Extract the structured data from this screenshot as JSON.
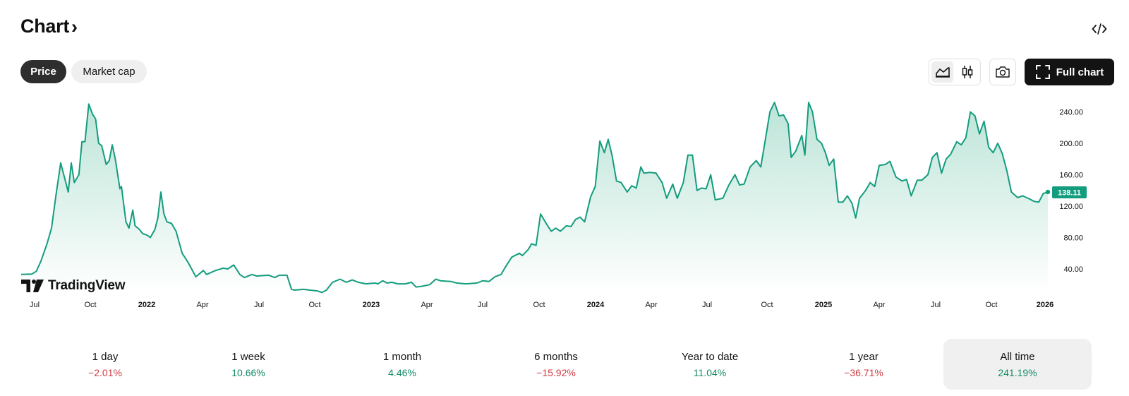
{
  "header": {
    "title": "Chart",
    "chevron": "›",
    "embed_icon": "code-icon"
  },
  "tabs": [
    {
      "label": "Price",
      "active": true
    },
    {
      "label": "Market cap",
      "active": false
    }
  ],
  "toolbar": {
    "area_icon": "area-chart-icon",
    "candle_icon": "candlestick-icon",
    "snapshot_icon": "camera-icon",
    "full_chart_label": "Full chart",
    "full_chart_icon": "fullscreen-icon"
  },
  "watermark": "TradingView",
  "chart_data": {
    "type": "area",
    "line_color": "#149c7e",
    "fill_color": "#d4efe7",
    "x_tick_labels": [
      "Jul",
      "Oct",
      "2022",
      "Apr",
      "Jul",
      "Oct",
      "2023",
      "Apr",
      "Jul",
      "Oct",
      "2024",
      "Apr",
      "Jul",
      "Oct",
      "2025",
      "Apr",
      "Jul",
      "Oct",
      "2026"
    ],
    "x_tick_bold": [
      false,
      false,
      true,
      false,
      false,
      false,
      true,
      false,
      false,
      false,
      true,
      false,
      false,
      false,
      true,
      false,
      false,
      false,
      true
    ],
    "y_tick_labels": [
      "240.00",
      "200.00",
      "160.00",
      "120.00",
      "80.00",
      "40.00"
    ],
    "y_ticks": [
      240,
      200,
      160,
      120,
      80,
      40
    ],
    "ylim": [
      10,
      270
    ],
    "xlim": [
      0,
      54
    ],
    "last_value_label": "138.11",
    "points": [
      [
        0,
        33
      ],
      [
        0.7,
        33.5
      ],
      [
        1,
        37
      ],
      [
        1.3,
        50
      ],
      [
        1.7,
        72
      ],
      [
        2,
        92
      ],
      [
        2.3,
        135
      ],
      [
        2.6,
        175
      ],
      [
        2.9,
        153
      ],
      [
        3.1,
        138
      ],
      [
        3.3,
        175
      ],
      [
        3.5,
        150
      ],
      [
        3.8,
        160
      ],
      [
        4,
        202
      ],
      [
        4.2,
        202
      ],
      [
        4.45,
        250
      ],
      [
        4.7,
        237
      ],
      [
        4.9,
        231
      ],
      [
        5.1,
        200
      ],
      [
        5.3,
        197
      ],
      [
        5.6,
        173
      ],
      [
        5.8,
        178
      ],
      [
        6,
        198
      ],
      [
        6.2,
        180
      ],
      [
        6.5,
        142
      ],
      [
        6.6,
        145
      ],
      [
        6.9,
        100
      ],
      [
        7.1,
        92
      ],
      [
        7.35,
        115
      ],
      [
        7.5,
        95
      ],
      [
        7.8,
        90
      ],
      [
        8,
        85
      ],
      [
        8.3,
        83
      ],
      [
        8.5,
        80
      ],
      [
        8.8,
        90
      ],
      [
        9,
        105
      ],
      [
        9.2,
        138
      ],
      [
        9.4,
        110
      ],
      [
        9.6,
        100
      ],
      [
        9.9,
        98
      ],
      [
        10.2,
        88
      ],
      [
        10.6,
        60
      ],
      [
        11,
        48
      ],
      [
        11.5,
        30
      ],
      [
        12,
        38
      ],
      [
        12.2,
        33
      ],
      [
        12.8,
        38
      ],
      [
        13.3,
        41
      ],
      [
        13.6,
        40
      ],
      [
        14,
        45
      ],
      [
        14.4,
        33
      ],
      [
        14.7,
        29
      ],
      [
        15.2,
        33
      ],
      [
        15.5,
        31
      ],
      [
        16.3,
        32
      ],
      [
        16.7,
        29
      ],
      [
        17,
        32
      ],
      [
        17.5,
        32
      ],
      [
        17.8,
        14
      ],
      [
        18,
        13
      ],
      [
        18.6,
        14
      ],
      [
        19,
        13
      ],
      [
        19.5,
        12
      ],
      [
        19.8,
        10
      ],
      [
        20.1,
        13
      ],
      [
        20.5,
        23
      ],
      [
        21,
        27
      ],
      [
        21.4,
        23
      ],
      [
        21.8,
        26
      ],
      [
        22.2,
        23
      ],
      [
        22.7,
        21
      ],
      [
        23.3,
        22
      ],
      [
        23.5,
        21
      ],
      [
        23.8,
        25
      ],
      [
        24.1,
        22
      ],
      [
        24.4,
        23
      ],
      [
        24.8,
        21
      ],
      [
        25.3,
        21
      ],
      [
        25.7,
        23
      ],
      [
        26,
        17
      ],
      [
        26.4,
        18
      ],
      [
        26.9,
        20
      ],
      [
        27.3,
        27
      ],
      [
        27.6,
        25
      ],
      [
        28.3,
        24
      ],
      [
        28.7,
        22
      ],
      [
        29.3,
        21
      ],
      [
        30,
        22
      ],
      [
        30.4,
        25
      ],
      [
        30.8,
        24
      ],
      [
        31.2,
        30
      ],
      [
        31.6,
        33
      ],
      [
        31.9,
        43
      ],
      [
        32.3,
        55
      ],
      [
        32.8,
        60
      ],
      [
        33,
        57
      ],
      [
        33.4,
        65
      ],
      [
        33.6,
        72
      ],
      [
        33.9,
        70
      ],
      [
        34.2,
        110
      ],
      [
        34.6,
        97
      ],
      [
        34.9,
        88
      ],
      [
        35.2,
        92
      ],
      [
        35.5,
        88
      ],
      [
        35.9,
        95
      ],
      [
        36.2,
        94
      ],
      [
        36.5,
        103
      ],
      [
        36.8,
        106
      ],
      [
        37.1,
        100
      ],
      [
        37.5,
        132
      ],
      [
        37.8,
        145
      ],
      [
        38.1,
        203
      ],
      [
        38.4,
        188
      ],
      [
        38.65,
        205
      ],
      [
        38.9,
        185
      ],
      [
        39.2,
        152
      ],
      [
        39.5,
        150
      ],
      [
        39.9,
        138
      ],
      [
        40.2,
        146
      ],
      [
        40.5,
        143
      ],
      [
        40.8,
        170
      ],
      [
        41,
        162
      ],
      [
        41.4,
        163
      ],
      [
        41.8,
        162
      ],
      [
        42.2,
        150
      ],
      [
        42.5,
        130
      ],
      [
        42.9,
        148
      ],
      [
        43.2,
        130
      ],
      [
        43.6,
        150
      ],
      [
        43.9,
        185
      ],
      [
        44.2,
        185
      ],
      [
        44.5,
        140
      ],
      [
        44.8,
        143
      ],
      [
        45.1,
        142
      ],
      [
        45.4,
        160
      ],
      [
        45.7,
        128
      ],
      [
        46.2,
        130
      ],
      [
        46.6,
        147
      ],
      [
        47,
        160
      ],
      [
        47.3,
        147
      ],
      [
        47.6,
        148
      ],
      [
        48,
        170
      ],
      [
        48.4,
        178
      ],
      [
        48.7,
        170
      ],
      [
        49,
        205
      ],
      [
        49.3,
        240
      ],
      [
        49.6,
        252
      ],
      [
        49.9,
        235
      ],
      [
        50.2,
        236
      ],
      [
        50.5,
        225
      ],
      [
        50.7,
        182
      ],
      [
        51,
        190
      ],
      [
        51.2,
        200
      ],
      [
        51.4,
        210
      ],
      [
        51.6,
        185
      ],
      [
        51.85,
        252
      ],
      [
        52.1,
        240
      ],
      [
        52.4,
        205
      ],
      [
        52.7,
        200
      ],
      [
        52.95,
        188
      ],
      [
        53.2,
        172
      ],
      [
        53.5,
        180
      ],
      [
        53.8,
        125
      ]
    ],
    "points_cont": [
      [
        54.1,
        125
      ],
      [
        54.4,
        133
      ],
      [
        54.7,
        124
      ],
      [
        54.95,
        105
      ],
      [
        55.2,
        130
      ],
      [
        55.6,
        140
      ],
      [
        55.9,
        150
      ],
      [
        56.2,
        145
      ],
      [
        56.5,
        172
      ],
      [
        56.9,
        173
      ],
      [
        57.2,
        177
      ],
      [
        57.6,
        157
      ],
      [
        58,
        152
      ],
      [
        58.3,
        154
      ],
      [
        58.6,
        133
      ],
      [
        59,
        153
      ],
      [
        59.3,
        153
      ],
      [
        59.7,
        160
      ],
      [
        60,
        182
      ],
      [
        60.3,
        188
      ],
      [
        60.6,
        162
      ],
      [
        60.9,
        180
      ],
      [
        61.2,
        186
      ],
      [
        61.6,
        202
      ],
      [
        61.9,
        198
      ],
      [
        62.2,
        207
      ],
      [
        62.5,
        240
      ],
      [
        62.8,
        235
      ],
      [
        63.1,
        212
      ],
      [
        63.4,
        228
      ],
      [
        63.7,
        195
      ],
      [
        64,
        188
      ],
      [
        64.3,
        200
      ],
      [
        64.6,
        187
      ],
      [
        64.9,
        165
      ],
      [
        65.2,
        138
      ],
      [
        65.6,
        131
      ],
      [
        65.95,
        133
      ],
      [
        66.3,
        130
      ],
      [
        66.7,
        126
      ],
      [
        67,
        125
      ],
      [
        67.3,
        136
      ],
      [
        67.6,
        138
      ]
    ]
  },
  "stats": [
    {
      "label": "1 day",
      "value": "−2.01%",
      "trend": "neg",
      "active": false
    },
    {
      "label": "1 week",
      "value": "10.66%",
      "trend": "pos",
      "active": false
    },
    {
      "label": "1 month",
      "value": "4.46%",
      "trend": "pos",
      "active": false
    },
    {
      "label": "6 months",
      "value": "−15.92%",
      "trend": "neg",
      "active": false
    },
    {
      "label": "Year to date",
      "value": "11.04%",
      "trend": "pos",
      "active": false
    },
    {
      "label": "1 year",
      "value": "−36.71%",
      "trend": "neg",
      "active": false
    },
    {
      "label": "All time",
      "value": "241.19%",
      "trend": "pos",
      "active": true
    }
  ]
}
